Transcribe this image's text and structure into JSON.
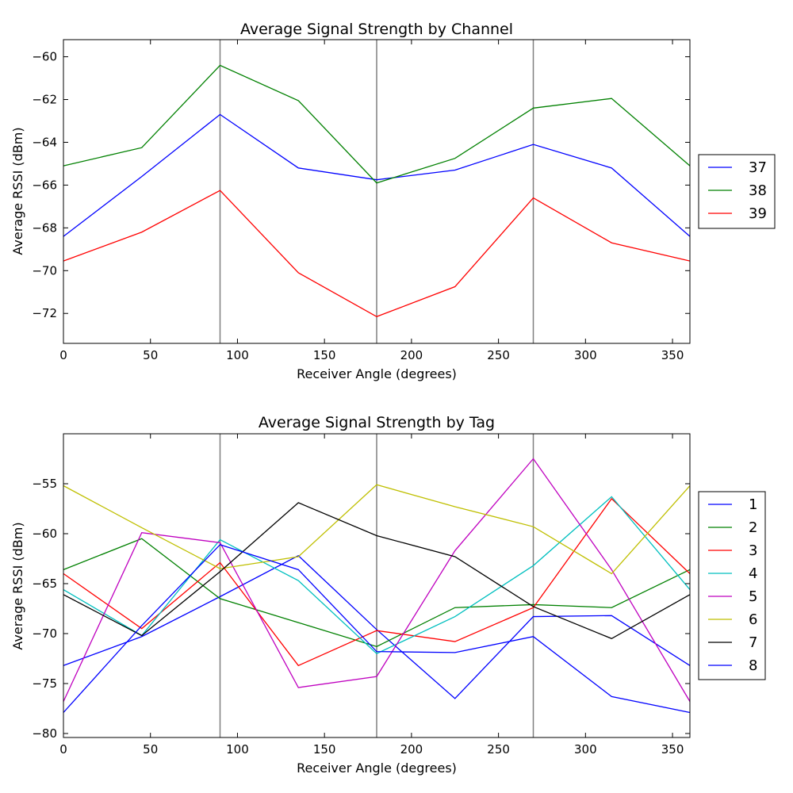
{
  "chart_data": [
    {
      "type": "line",
      "title": "Average Signal Strength by Channel",
      "xlabel": "Receiver Angle (degrees)",
      "ylabel": "Average RSSI (dBm)",
      "xlim": [
        0,
        360
      ],
      "ylim": [
        -73.4,
        -59.2
      ],
      "xticks": [
        0,
        50,
        100,
        150,
        200,
        250,
        300,
        350
      ],
      "yticks": [
        -72,
        -70,
        -68,
        -66,
        -64,
        -62,
        -60
      ],
      "vlines": [
        90,
        180,
        270
      ],
      "grid": false,
      "legend_position": "outside-right",
      "x": [
        0,
        45,
        90,
        135,
        180,
        225,
        270,
        315,
        360
      ],
      "series": [
        {
          "name": "37",
          "color": "#0000ff",
          "values": [
            -68.4,
            -65.6,
            -62.7,
            -65.2,
            -65.75,
            -65.3,
            -64.1,
            -65.2,
            -68.4
          ]
        },
        {
          "name": "38",
          "color": "#008000",
          "values": [
            -65.1,
            -64.25,
            -60.4,
            -62.05,
            -65.9,
            -64.75,
            -62.4,
            -61.95,
            -65.1
          ]
        },
        {
          "name": "39",
          "color": "#ff0000",
          "values": [
            -69.55,
            -68.2,
            -66.25,
            -70.1,
            -72.15,
            -70.75,
            -66.6,
            -68.7,
            -69.55
          ]
        }
      ]
    },
    {
      "type": "line",
      "title": "Average Signal Strength by Tag",
      "xlabel": "Receiver Angle (degrees)",
      "ylabel": "Average RSSI (dBm)",
      "xlim": [
        0,
        360
      ],
      "ylim": [
        -80.4,
        -50.0
      ],
      "xticks": [
        0,
        50,
        100,
        150,
        200,
        250,
        300,
        350
      ],
      "yticks": [
        -80,
        -75,
        -70,
        -65,
        -60,
        -55
      ],
      "vlines": [
        90,
        180,
        270
      ],
      "grid": false,
      "legend_position": "outside-right",
      "x": [
        0,
        45,
        90,
        135,
        180,
        225,
        270,
        315,
        360
      ],
      "series": [
        {
          "name": "1",
          "color": "#0000ff",
          "values": [
            -73.2,
            -70.3,
            -66.3,
            -62.2,
            -69.6,
            -76.5,
            -68.3,
            -68.2,
            -73.2
          ]
        },
        {
          "name": "2",
          "color": "#008000",
          "values": [
            -63.6,
            -60.5,
            -66.5,
            -68.9,
            -71.3,
            -67.4,
            -67.1,
            -67.4,
            -63.6
          ]
        },
        {
          "name": "3",
          "color": "#ff0000",
          "values": [
            -64.0,
            -69.5,
            -62.9,
            -73.2,
            -69.7,
            -70.8,
            -67.4,
            -56.5,
            -64.0
          ]
        },
        {
          "name": "4",
          "color": "#00bfbf",
          "values": [
            -65.6,
            -70.2,
            -60.6,
            -64.7,
            -72.0,
            -68.3,
            -63.2,
            -56.3,
            -65.6
          ]
        },
        {
          "name": "5",
          "color": "#bf00bf",
          "values": [
            -76.8,
            -59.9,
            -60.9,
            -75.4,
            -74.3,
            -61.7,
            -52.5,
            -63.6,
            -76.8
          ]
        },
        {
          "name": "6",
          "color": "#bfbf00",
          "values": [
            -55.2,
            -59.4,
            -63.5,
            -62.3,
            -55.1,
            -57.3,
            -59.3,
            -64.0,
            -55.2
          ]
        },
        {
          "name": "7",
          "color": "#000000",
          "values": [
            -66.1,
            -70.2,
            -63.8,
            -56.9,
            -60.2,
            -62.3,
            -67.3,
            -70.5,
            -66.1
          ]
        },
        {
          "name": "8",
          "color": "#0000ff",
          "values": [
            -77.9,
            -69.2,
            -61.1,
            -63.6,
            -71.8,
            -71.9,
            -70.3,
            -76.3,
            -77.9
          ]
        }
      ]
    }
  ]
}
